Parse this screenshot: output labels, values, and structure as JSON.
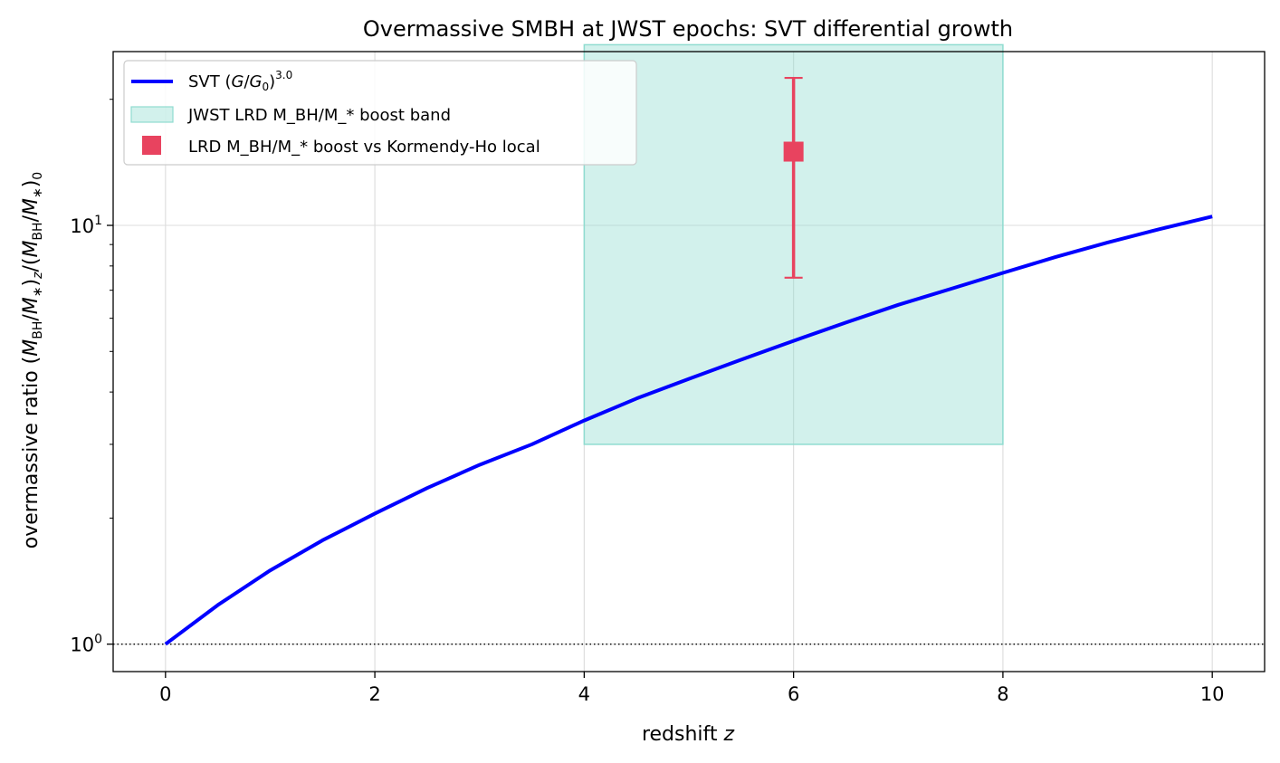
{
  "chart_data": {
    "type": "line",
    "title": "Overmassive SMBH at JWST epochs: SVT differential growth",
    "xlabel": "redshift z",
    "ylabel": "overmassive ratio (M_BH/M_*)_z/(M_BH/M_*)_0",
    "xlim": [
      -0.5,
      10.5
    ],
    "ylim": [
      0.86,
      26.0
    ],
    "yscale": "log",
    "x_ticks": [
      0,
      2,
      4,
      6,
      8,
      10
    ],
    "x_tick_labels": [
      "0",
      "2",
      "4",
      "6",
      "8",
      "10"
    ],
    "y_ticks": [
      1,
      10
    ],
    "y_tick_base": "10",
    "y_tick_exponents": [
      "0",
      "1"
    ],
    "y_minor_ticks": [
      2,
      3,
      4,
      5,
      6,
      7,
      8,
      9,
      20
    ],
    "grid": true,
    "reference_line": {
      "y": 1,
      "style": "dotted",
      "color": "#000000"
    },
    "legend_position": "upper-left",
    "series": [
      {
        "name": "SVT (G/G0)^3.0",
        "kind": "line",
        "color": "#0000ff",
        "x": [
          0,
          0.5,
          1,
          1.5,
          2,
          2.5,
          3,
          3.5,
          4,
          4.5,
          5,
          5.5,
          6,
          6.5,
          7,
          7.5,
          8,
          8.5,
          9,
          9.5,
          10
        ],
        "y": [
          1.0,
          1.24,
          1.5,
          1.77,
          2.05,
          2.36,
          2.68,
          3.0,
          3.42,
          3.86,
          4.3,
          4.78,
          5.3,
          5.86,
          6.46,
          7.05,
          7.7,
          8.4,
          9.1,
          9.8,
          10.5
        ]
      },
      {
        "name": "JWST LRD M_BH/M_* boost band",
        "kind": "band",
        "color": "#8fdcd0",
        "x_range": [
          4,
          8
        ],
        "y_range": [
          3,
          27
        ]
      },
      {
        "name": "LRD M_BH/M_* boost vs Kormendy-Ho local",
        "kind": "errorbar",
        "color": "#e8435f",
        "x": 6,
        "y": 15,
        "y_err_low": 7.5,
        "y_err_high": 22.5
      }
    ]
  }
}
